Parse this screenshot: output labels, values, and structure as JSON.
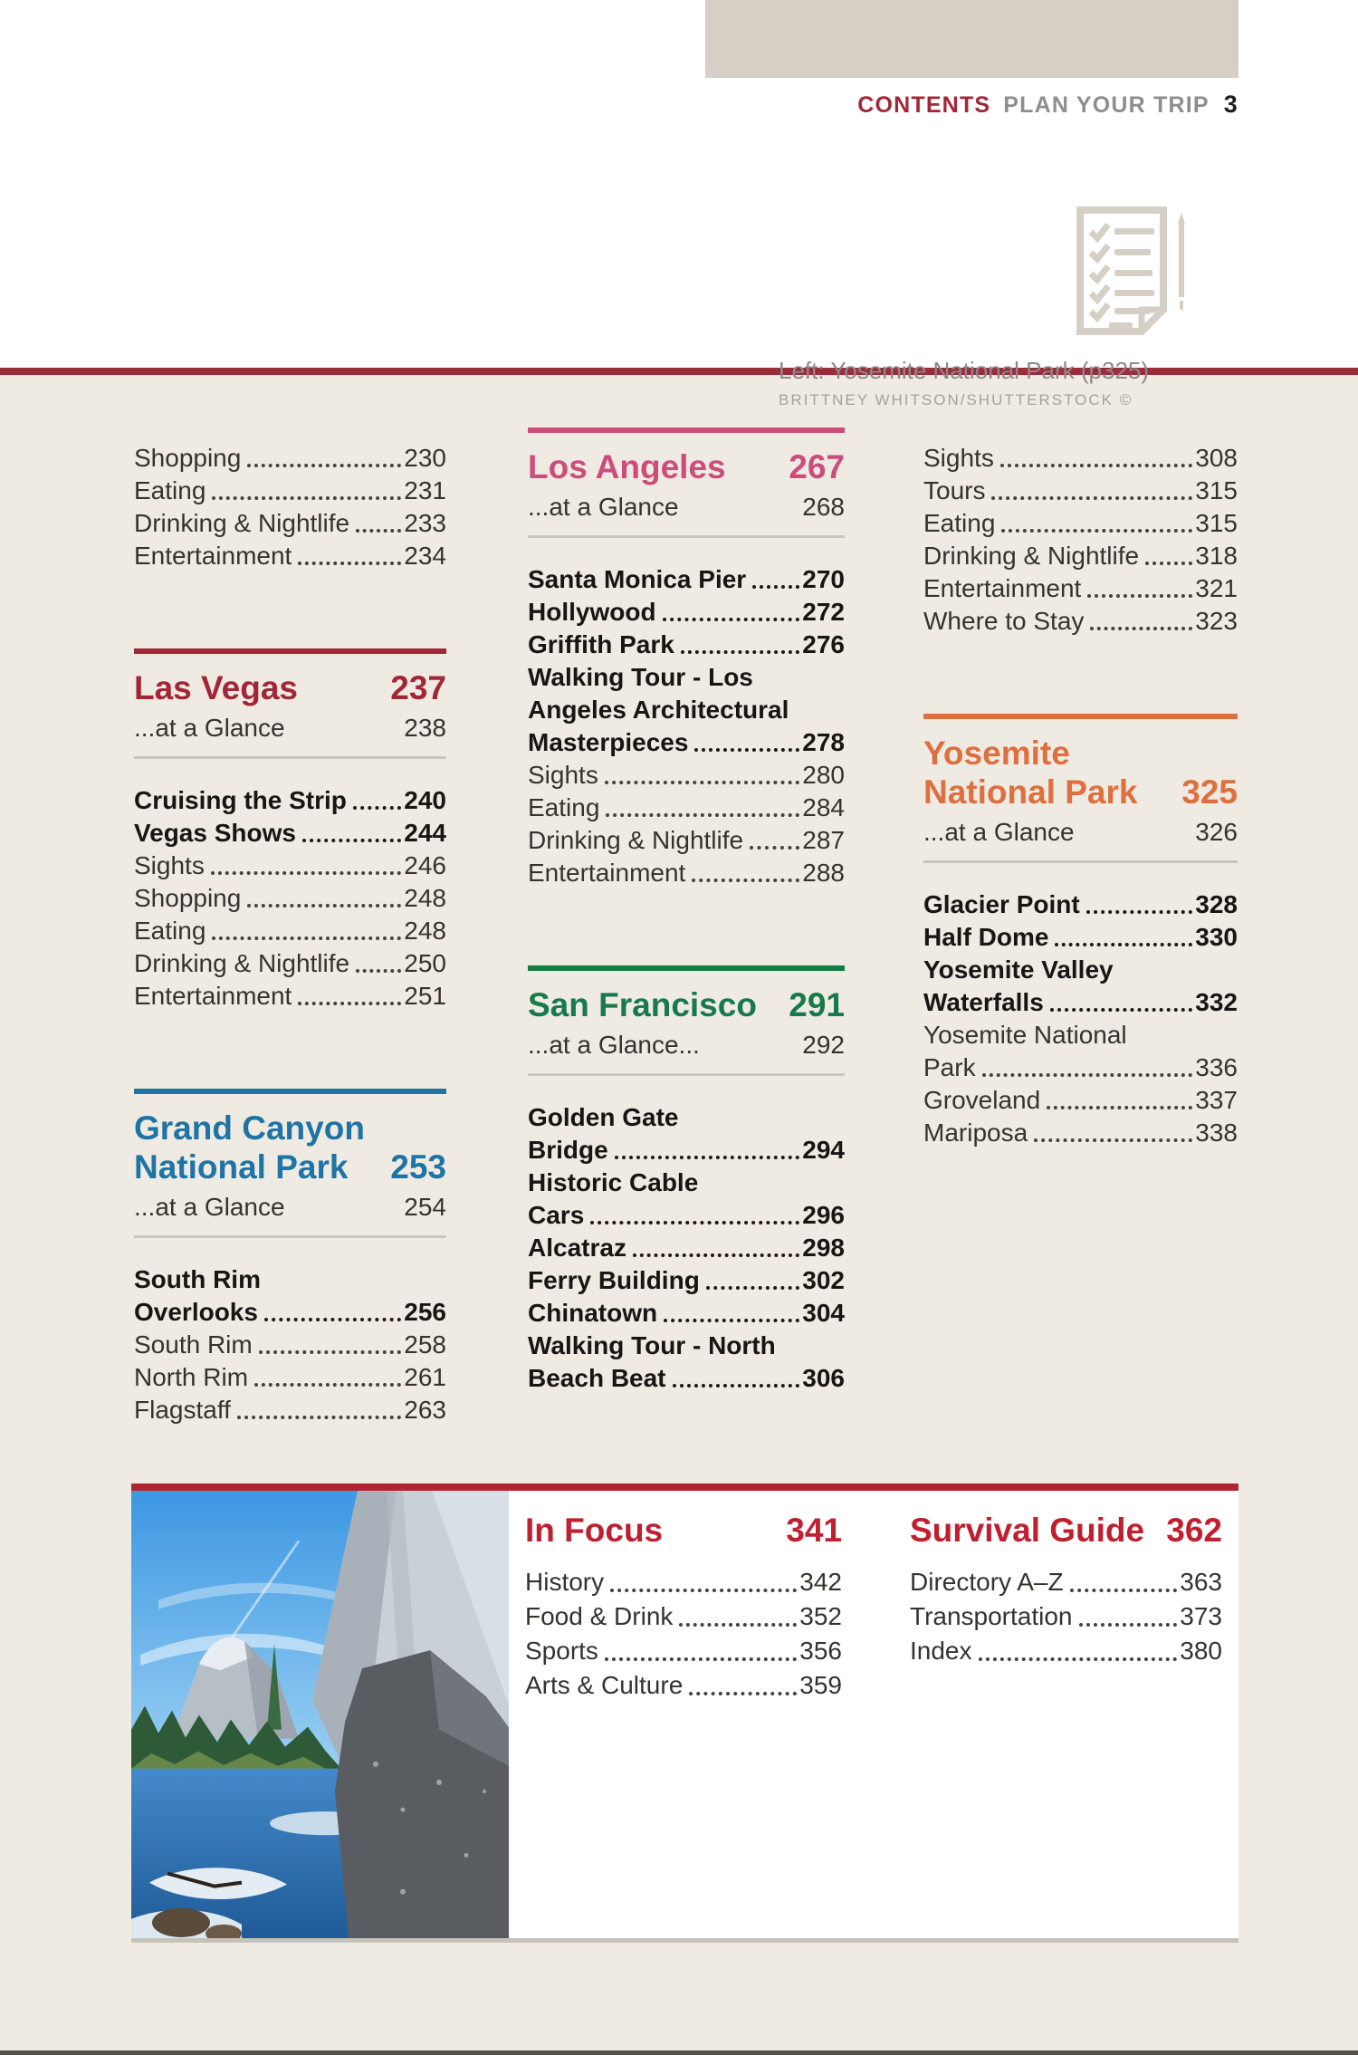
{
  "page": {
    "header": {
      "contents_label": "CONTENTS",
      "section_label": "PLAN YOUR TRIP",
      "page_number": "3"
    },
    "icon_name": "checklist-and-pen-icon"
  },
  "colors": {
    "page_rule": "#9e2b3a",
    "beige": "#d6cfc5",
    "las_vegas": "#a32638",
    "grand_canyon": "#1e74a5",
    "los_angeles": "#cc4d7c",
    "san_francisco": "#187a4b",
    "yosemite": "#df6f3e",
    "focus_red": "#c01f2f"
  },
  "toc_columns": [
    [
      {
        "type": "entries",
        "items": [
          {
            "label": "Shopping",
            "page": "230"
          },
          {
            "label": "Eating",
            "page": "231"
          },
          {
            "label": "Drinking & Nightlife",
            "page": "233"
          },
          {
            "label": "Entertainment",
            "page": "234"
          }
        ]
      },
      {
        "type": "section",
        "title_lines": [
          "Las Vegas"
        ],
        "page": "237",
        "accent": "#a32638",
        "glance_label": "...at a Glance",
        "glance_page": "238"
      },
      {
        "type": "entries",
        "items": [
          {
            "label": "Cruising the Strip",
            "page": "240",
            "bold": true
          },
          {
            "label": "Vegas Shows",
            "page": "244",
            "bold": true
          },
          {
            "label": "Sights",
            "page": "246"
          },
          {
            "label": "Shopping",
            "page": "248"
          },
          {
            "label": "Eating",
            "page": "248"
          },
          {
            "label": "Drinking & Nightlife",
            "page": "250"
          },
          {
            "label": "Entertainment",
            "page": "251"
          }
        ]
      },
      {
        "type": "section",
        "title_lines": [
          "Grand Canyon",
          "National Park"
        ],
        "page": "253",
        "accent": "#1e74a5",
        "glance_label": "...at a Glance",
        "glance_page": "254"
      },
      {
        "type": "entries",
        "items": [
          {
            "pre": [
              "South Rim"
            ],
            "label": "Overlooks",
            "page": "256",
            "bold": true
          },
          {
            "label": "South Rim",
            "page": "258"
          },
          {
            "label": "North Rim",
            "page": "261"
          },
          {
            "label": "Flagstaff",
            "page": "263"
          }
        ]
      }
    ],
    [
      {
        "type": "section",
        "title_lines": [
          "Los Angeles"
        ],
        "page": "267",
        "accent": "#cc4d7c",
        "glance_label": "...at a Glance",
        "glance_page": "268"
      },
      {
        "type": "entries",
        "items": [
          {
            "label": "Santa Monica Pier",
            "page": "270",
            "bold": true
          },
          {
            "label": "Hollywood",
            "page": "272",
            "bold": true
          },
          {
            "label": "Griffith Park",
            "page": "276",
            "bold": true
          },
          {
            "pre": [
              "Walking Tour - Los",
              "Angeles Architectural"
            ],
            "label": "Masterpieces",
            "page": "278",
            "bold": true
          },
          {
            "label": "Sights",
            "page": "280"
          },
          {
            "label": "Eating",
            "page": "284"
          },
          {
            "label": "Drinking & Nightlife",
            "page": "287"
          },
          {
            "label": "Entertainment",
            "page": "288"
          }
        ]
      },
      {
        "type": "section",
        "title_lines": [
          "San Francisco"
        ],
        "page": "291",
        "accent": "#187a4b",
        "glance_label": "...at a Glance...",
        "glance_page": "292"
      },
      {
        "type": "entries",
        "items": [
          {
            "pre": [
              "Golden Gate"
            ],
            "label": "Bridge",
            "page": "294",
            "bold": true
          },
          {
            "pre": [
              "Historic Cable"
            ],
            "label": "Cars",
            "page": "296",
            "bold": true
          },
          {
            "label": "Alcatraz",
            "page": "298",
            "bold": true
          },
          {
            "label": "Ferry Building",
            "page": "302",
            "bold": true
          },
          {
            "label": "Chinatown",
            "page": "304",
            "bold": true
          },
          {
            "pre": [
              "Walking Tour - North"
            ],
            "label": "Beach Beat",
            "page": "306",
            "bold": true
          }
        ]
      }
    ],
    [
      {
        "type": "entries",
        "items": [
          {
            "label": "Sights",
            "page": "308"
          },
          {
            "label": "Tours",
            "page": "315"
          },
          {
            "label": "Eating",
            "page": "315"
          },
          {
            "label": "Drinking & Nightlife",
            "page": "318"
          },
          {
            "label": "Entertainment",
            "page": "321"
          },
          {
            "label": "Where to Stay",
            "page": "323"
          }
        ]
      },
      {
        "type": "section",
        "title_lines": [
          "Yosemite",
          "National Park"
        ],
        "page": "325",
        "accent": "#df6f3e",
        "glance_label": "...at a Glance",
        "glance_page": "326"
      },
      {
        "type": "entries",
        "items": [
          {
            "label": "Glacier Point",
            "page": "328",
            "bold": true
          },
          {
            "label": "Half Dome",
            "page": "330",
            "bold": true
          },
          {
            "pre": [
              "Yosemite Valley"
            ],
            "label": "Waterfalls",
            "page": "332",
            "bold": true
          },
          {
            "pre": [
              "Yosemite National"
            ],
            "label": "Park",
            "page": "336"
          },
          {
            "label": "Groveland",
            "page": "337"
          },
          {
            "label": "Mariposa",
            "page": "338"
          }
        ]
      }
    ]
  ],
  "bottom": {
    "photo_name": "yosemite-mirror-lake-photo",
    "in_focus": {
      "title": "In Focus",
      "page": "341",
      "accent": "#c01f2f",
      "items": [
        {
          "label": "History",
          "page": "342"
        },
        {
          "label": "Food & Drink",
          "page": "352"
        },
        {
          "label": "Sports",
          "page": "356"
        },
        {
          "label": "Arts & Culture",
          "page": "359"
        }
      ]
    },
    "survival_guide": {
      "title": "Survival Guide",
      "page": "362",
      "accent": "#c01f2f",
      "items": [
        {
          "label": "Directory A–Z",
          "page": "363"
        },
        {
          "label": "Transportation",
          "page": "373"
        },
        {
          "label": "Index",
          "page": "380"
        }
      ]
    },
    "caption": {
      "title": "Left: Yosemite National Park (p325)",
      "credit": "BRITTNEY WHITSON/SHUTTERSTOCK ©"
    }
  }
}
